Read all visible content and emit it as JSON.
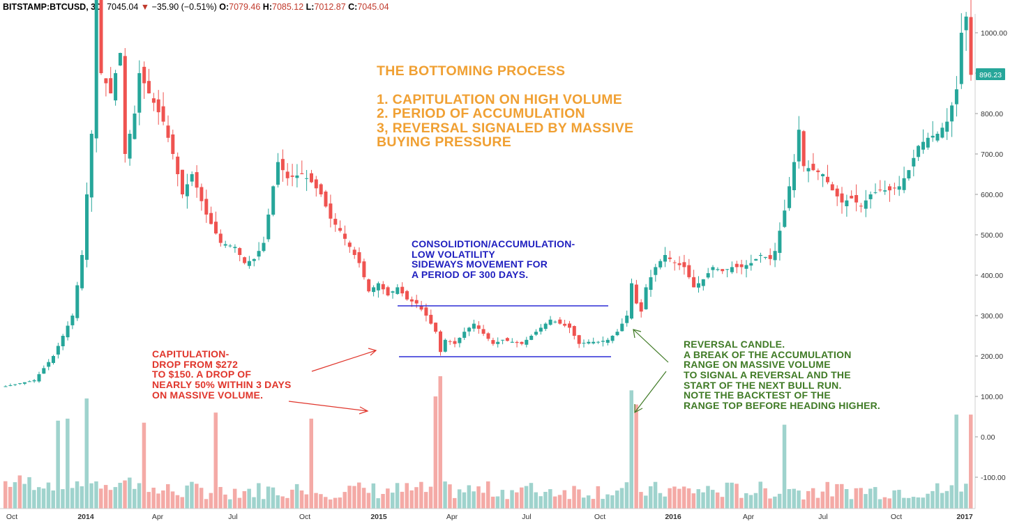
{
  "header": {
    "symbol": "BITSTAMP:BTCUSD, 3D",
    "last": "7045.04",
    "change_arrow": "▼",
    "change": "−35.90 (−0.51%)",
    "o_label": "O:",
    "o_value": "7079.46",
    "h_label": "H:",
    "h_value": "7085.12",
    "l_label": "L:",
    "l_value": "7012.87",
    "c_label": "C:",
    "c_value": "7045.04"
  },
  "annotations": {
    "title": "THE BOTTOMING PROCESS\n\n1. CAPITULATION ON HIGH VOLUME\n2. PERIOD OF ACCUMULATION\n3, REVERSAL SIGNALED BY MASSIVE\nBUYING PRESSURE",
    "consolidation": "CONSOLIDTION/ACCUMULATION-\nLOW VOLATILITY\nSIDEWAYS MOVEMENT FOR\nA PERIOD OF 300 DAYS.",
    "capitulation": "CAPITULATION-\nDROP FROM $272\nTO $150. A DROP OF\nNEARLY 50% WITHIN 3 DAYS\nON MASSIVE VOLUME.",
    "reversal": "REVERSAL CANDLE.\nA BREAK OF THE ACCUMULATION\nRANGE ON MASSIVE VOLUME\nTO SIGNAL A REVERSAL AND THE\nSTART OF THE NEXT BULL RUN.\nNOTE THE BACKTEST OF THE\nRANGE TOP BEFORE HEADING HIGHER."
  },
  "colors": {
    "up": "#26a69a",
    "down": "#ef5350",
    "vol_up": "#9fd3cd",
    "vol_down": "#f4aaa6",
    "range_line": "#2b2bd6",
    "cap_arrow": "#e0352b",
    "rev_arrow": "#3f7a25",
    "price_label_bg": "#26a69a"
  },
  "chart_data": {
    "type": "candlestick",
    "x_ticks": [
      "Oct",
      "2014",
      "Apr",
      "Jul",
      "Oct",
      "2015",
      "Apr",
      "Jul",
      "Oct",
      "2016",
      "Apr",
      "Jul",
      "Oct",
      "2017"
    ],
    "y_ticks": [
      "1000.00",
      "900.00",
      "800.00",
      "700.00",
      "600.00",
      "500.00",
      "400.00",
      "300.00",
      "200.00",
      "100.00",
      "0.00",
      "-100.00"
    ],
    "y_range": [
      -160,
      1040
    ],
    "last_price_label": "896.23",
    "last_price": 896.23,
    "range_top": 322,
    "range_bottom": 197,
    "price_keypoints": [
      [
        0,
        125
      ],
      [
        6,
        140
      ],
      [
        10,
        200
      ],
      [
        14,
        300
      ],
      [
        16,
        450
      ],
      [
        18,
        750
      ],
      [
        19,
        1100
      ],
      [
        20,
        900
      ],
      [
        22,
        850
      ],
      [
        24,
        950
      ],
      [
        25,
        700
      ],
      [
        27,
        800
      ],
      [
        28,
        900
      ],
      [
        30,
        850
      ],
      [
        33,
        780
      ],
      [
        35,
        700
      ],
      [
        37,
        600
      ],
      [
        39,
        650
      ],
      [
        42,
        550
      ],
      [
        45,
        480
      ],
      [
        48,
        470
      ],
      [
        50,
        430
      ],
      [
        52,
        440
      ],
      [
        54,
        480
      ],
      [
        56,
        620
      ],
      [
        57,
        680
      ],
      [
        59,
        640
      ],
      [
        62,
        650
      ],
      [
        64,
        630
      ],
      [
        66,
        600
      ],
      [
        68,
        540
      ],
      [
        70,
        510
      ],
      [
        72,
        470
      ],
      [
        74,
        430
      ],
      [
        76,
        360
      ],
      [
        78,
        380
      ],
      [
        80,
        350
      ],
      [
        82,
        370
      ],
      [
        84,
        340
      ],
      [
        86,
        330
      ],
      [
        88,
        300
      ],
      [
        90,
        260
      ],
      [
        91,
        210
      ],
      [
        92,
        240
      ],
      [
        94,
        230
      ],
      [
        96,
        260
      ],
      [
        98,
        280
      ],
      [
        100,
        255
      ],
      [
        102,
        230
      ],
      [
        104,
        240
      ],
      [
        106,
        235
      ],
      [
        108,
        230
      ],
      [
        110,
        250
      ],
      [
        112,
        270
      ],
      [
        114,
        290
      ],
      [
        116,
        280
      ],
      [
        118,
        270
      ],
      [
        120,
        230
      ],
      [
        122,
        235
      ],
      [
        124,
        235
      ],
      [
        126,
        240
      ],
      [
        128,
        260
      ],
      [
        130,
        300
      ],
      [
        131,
        380
      ],
      [
        132,
        330
      ],
      [
        133,
        310
      ],
      [
        134,
        370
      ],
      [
        136,
        420
      ],
      [
        138,
        450
      ],
      [
        140,
        430
      ],
      [
        142,
        420
      ],
      [
        144,
        370
      ],
      [
        146,
        390
      ],
      [
        148,
        420
      ],
      [
        150,
        410
      ],
      [
        152,
        420
      ],
      [
        154,
        420
      ],
      [
        156,
        430
      ],
      [
        158,
        450
      ],
      [
        160,
        440
      ],
      [
        161,
        460
      ],
      [
        163,
        560
      ],
      [
        165,
        680
      ],
      [
        166,
        760
      ],
      [
        167,
        670
      ],
      [
        169,
        660
      ],
      [
        171,
        650
      ],
      [
        173,
        610
      ],
      [
        175,
        580
      ],
      [
        177,
        590
      ],
      [
        179,
        570
      ],
      [
        181,
        600
      ],
      [
        183,
        610
      ],
      [
        185,
        610
      ],
      [
        187,
        620
      ],
      [
        189,
        660
      ],
      [
        191,
        720
      ],
      [
        193,
        740
      ],
      [
        195,
        750
      ],
      [
        197,
        780
      ],
      [
        199,
        860
      ],
      [
        200,
        1000
      ],
      [
        201,
        1040
      ],
      [
        202,
        896
      ]
    ],
    "volume_spikes": [
      [
        11,
        40
      ],
      [
        13,
        45
      ],
      [
        17,
        95
      ],
      [
        29,
        35
      ],
      [
        44,
        60
      ],
      [
        64,
        45
      ],
      [
        90,
        100
      ],
      [
        91,
        150
      ],
      [
        131,
        115
      ],
      [
        132,
        80
      ],
      [
        163,
        30
      ],
      [
        199,
        55
      ],
      [
        202,
        55
      ]
    ],
    "xlabel": "",
    "ylabel": ""
  }
}
